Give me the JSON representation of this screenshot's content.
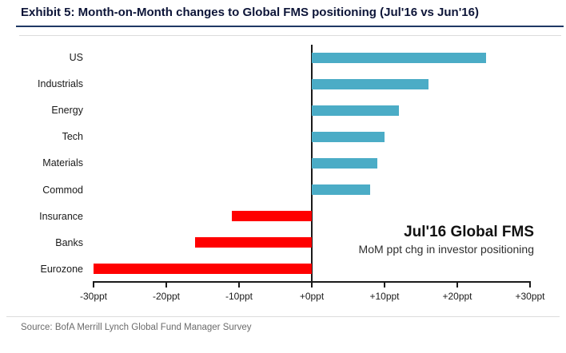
{
  "header": {
    "title": "Exhibit 5: Month-on-Month changes to Global FMS positioning (Jul'16 vs Jun'16)"
  },
  "chart_data": {
    "type": "bar",
    "orientation": "horizontal",
    "title": "Exhibit 5: Month-on-Month changes to Global FMS positioning (Jul'16 vs Jun'16)",
    "categories": [
      "US",
      "Industrials",
      "Energy",
      "Tech",
      "Materials",
      "Commod",
      "Insurance",
      "Banks",
      "Eurozone"
    ],
    "values": [
      24,
      16,
      12,
      10,
      9,
      8,
      -11,
      -16,
      -30
    ],
    "unit": "ppt",
    "xlim": [
      -30,
      30
    ],
    "x_ticks": [
      -30,
      -20,
      -10,
      0,
      10,
      20,
      30
    ],
    "x_tick_labels": [
      "-30ppt",
      "-20ppt",
      "-10ppt",
      "+0ppt",
      "+10ppt",
      "+20ppt",
      "+30ppt"
    ],
    "positive_color": "#4BACC6",
    "negative_color": "#FF0000",
    "grid": "off",
    "legend": "none",
    "annotation_title": "Jul'16 Global FMS",
    "annotation_subtitle": "MoM ppt chg in investor positioning"
  },
  "footer": {
    "source": "Source: BofA Merrill Lynch Global Fund Manager Survey"
  }
}
